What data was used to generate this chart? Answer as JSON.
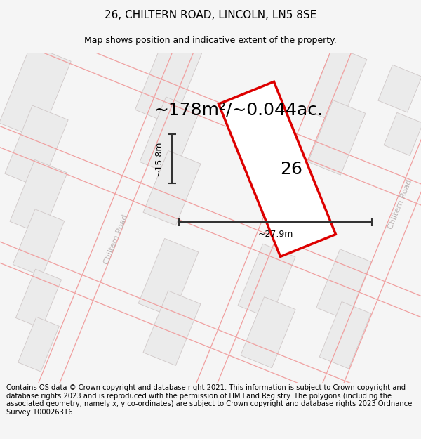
{
  "title": "26, CHILTERN ROAD, LINCOLN, LN5 8SE",
  "subtitle": "Map shows position and indicative extent of the property.",
  "area_label": "~178m²/~0.044ac.",
  "number_label": "26",
  "dim_width": "~27.9m",
  "dim_height": "~15.8m",
  "footer": "Contains OS data © Crown copyright and database right 2021. This information is subject to Crown copyright and database rights 2023 and is reproduced with the permission of HM Land Registry. The polygons (including the associated geometry, namely x, y co-ordinates) are subject to Crown copyright and database rights 2023 Ordnance Survey 100026316.",
  "map_bg": "#ffffff",
  "road_line_color": "#f0a0a0",
  "building_fill": "#ebebeb",
  "building_edge": "#d0c8c8",
  "road_label_color": "#b8b0b0",
  "property_fill": "#ffffff",
  "property_edge": "#dd0000",
  "dim_line_color": "#333333",
  "title_fontsize": 11,
  "subtitle_fontsize": 9,
  "footer_fontsize": 7.2,
  "area_fontsize": 18,
  "number_fontsize": 18,
  "dim_fontsize": 9,
  "road_label_fontsize": 8
}
